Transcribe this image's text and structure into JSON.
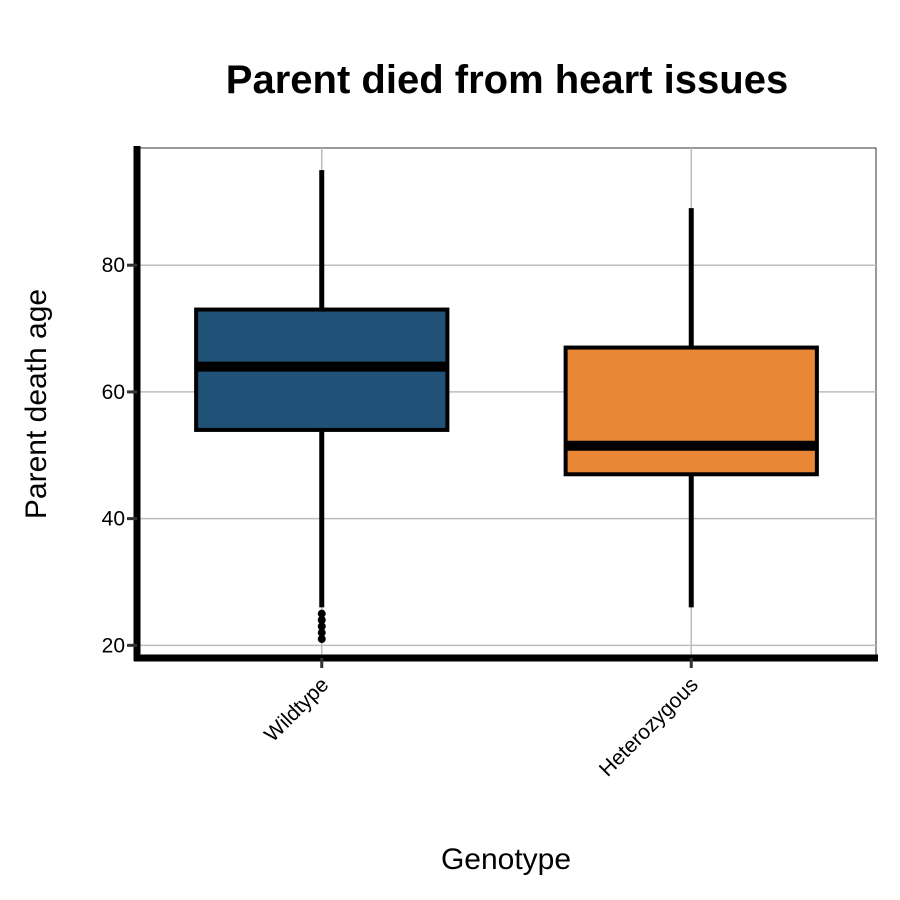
{
  "chart_data": {
    "type": "boxplot",
    "title": "Parent died from heart issues",
    "xlabel": "Genotype",
    "ylabel": "Parent death age",
    "categories": [
      "Wildtype",
      "Heterozygous"
    ],
    "ylim": [
      18,
      98.5
    ],
    "y_ticks": [
      20,
      40,
      60,
      80
    ],
    "grid": true,
    "series": [
      {
        "category": "Wildtype",
        "color": "#1f5276",
        "min": 26,
        "q1": 54,
        "median": 64,
        "q3": 73,
        "max": 95,
        "outliers": [
          21,
          22,
          23,
          24,
          25
        ]
      },
      {
        "category": "Heterozygous",
        "color": "#e98736",
        "min": 26,
        "q1": 47,
        "median": 51.5,
        "q3": 67,
        "max": 89,
        "outliers": []
      }
    ]
  }
}
